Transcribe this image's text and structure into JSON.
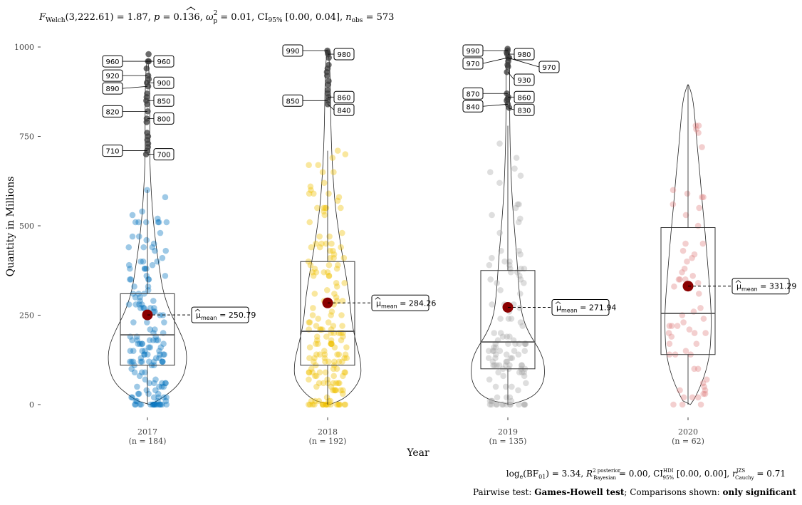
{
  "chart_data": {
    "type": "violin",
    "title": "F_Welch(3,222.61) = 1.87, p = 0.136, ω̂²p = 0.01, CI95% [0.00, 0.04], n_obs = 573",
    "title_parts": {
      "stat_name": "F",
      "stat_sub": "Welch",
      "stat_args": "(3,222.61) = 1.87, ",
      "p_name": "p",
      "p_val": " = 0.136, ",
      "omega": "ω",
      "omega_sup": "2",
      "omega_sub": "p",
      "omega_val": " = 0.01, CI",
      "ci_sub": "95%",
      "ci_val": " [0.00, 0.04], ",
      "n_name": "n",
      "n_sub": "obs",
      "n_val": " = 573"
    },
    "xlabel": "Year",
    "ylabel": "Quantity in Millions",
    "ylim": [
      0,
      1000
    ],
    "yticks": [
      0,
      250,
      500,
      750,
      1000
    ],
    "categories": [
      "2017",
      "2018",
      "2019",
      "2020"
    ],
    "n_labels": [
      "(n = 184)",
      "(n = 192)",
      "(n = 135)",
      "(n = 62)"
    ],
    "groups": [
      {
        "name": "2017",
        "n": 184,
        "color": "#0072BD",
        "mean": 250.79,
        "mean_label": "250.79",
        "box": {
          "q1": 110,
          "median": 195,
          "q3": 310
        },
        "whisker": [
          0,
          600
        ],
        "outliers": [
          {
            "v": 960,
            "side": "left"
          },
          {
            "v": 960,
            "side": "right"
          },
          {
            "v": 920,
            "side": "left"
          },
          {
            "v": 900,
            "side": "right"
          },
          {
            "v": 890,
            "side": "left"
          },
          {
            "v": 850,
            "side": "right"
          },
          {
            "v": 820,
            "side": "left"
          },
          {
            "v": 800,
            "side": "right"
          },
          {
            "v": 710,
            "side": "left"
          },
          {
            "v": 700,
            "side": "right"
          }
        ],
        "extra_outliers": [
          980,
          940,
          910,
          870,
          860,
          840,
          790,
          760,
          750,
          740,
          730,
          720
        ]
      },
      {
        "name": "2018",
        "n": 192,
        "color": "#EFC000",
        "mean": 284.26,
        "mean_label": "284.26",
        "box": {
          "q1": 110,
          "median": 205,
          "q3": 400
        },
        "whisker": [
          0,
          710
        ],
        "outliers": [
          {
            "v": 990,
            "side": "left"
          },
          {
            "v": 980,
            "side": "right"
          },
          {
            "v": 860,
            "side": "right"
          },
          {
            "v": 850,
            "side": "left"
          },
          {
            "v": 840,
            "side": "right"
          }
        ],
        "extra_outliers": [
          985,
          970,
          950,
          940,
          930,
          920,
          905,
          895,
          880,
          870
        ]
      },
      {
        "name": "2019",
        "n": 135,
        "color": "#A8A8A8",
        "mean": 271.94,
        "mean_label": "271.94",
        "box": {
          "q1": 100,
          "median": 175,
          "q3": 375
        },
        "whisker": [
          0,
          780
        ],
        "outliers": [
          {
            "v": 990,
            "side": "left"
          },
          {
            "v": 980,
            "side": "right"
          },
          {
            "v": 970,
            "side": "left"
          },
          {
            "v": 970,
            "side": "right"
          },
          {
            "v": 930,
            "side": "right"
          },
          {
            "v": 870,
            "side": "left"
          },
          {
            "v": 860,
            "side": "right"
          },
          {
            "v": 840,
            "side": "left"
          },
          {
            "v": 830,
            "side": "right"
          }
        ],
        "extra_outliers": [
          995,
          985,
          960,
          950,
          945,
          855,
          850
        ]
      },
      {
        "name": "2020",
        "n": 62,
        "color": "#E08080",
        "mean": 331.29,
        "mean_label": "331.29",
        "box": {
          "q1": 140,
          "median": 255,
          "q3": 495
        },
        "whisker": [
          0,
          895
        ],
        "outliers": [],
        "extra_outliers": []
      }
    ],
    "mean_label_prefix": "μ",
    "mean_label_sub": "mean",
    "footer_bf": {
      "a": "log",
      "a_sub": "e",
      "b": "(BF",
      "b_sub": "01",
      "c": ") = 3.34, ",
      "r": "R",
      "r_sup": "2 posterior",
      "r_sub": "Bayesian",
      "d": " = 0.00, CI",
      "ci_sup": "HDI",
      "ci_sub": "95%",
      "e": " [0.00, 0.00], ",
      "rc": "r",
      "rc_sup": "JZS",
      "rc_sub": "Cauchy",
      "f": " = 0.71"
    },
    "footer_pairwise": {
      "prefix": "Pairwise test: ",
      "test": "Games-Howell test",
      "mid": "; Comparisons shown: ",
      "shown": "only significant"
    }
  }
}
